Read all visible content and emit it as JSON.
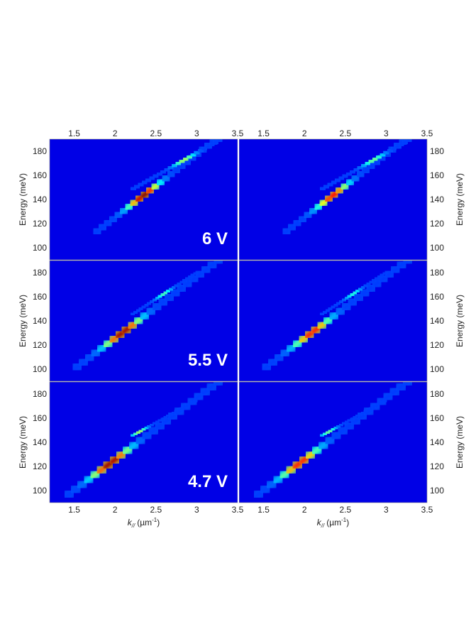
{
  "chart_data": {
    "type": "heatmap",
    "description_type": "energy-momentum dispersion maps, 3 rows x 2 columns (left: measured, right: simulated)",
    "x_label": {
      "main": "k",
      "sub": "//",
      "unit": "(µm",
      "sup": "-1",
      "close": ")"
    },
    "y_label": "Energy (meV)",
    "xlim": [
      1.2,
      3.5
    ],
    "ylim": [
      90,
      190
    ],
    "x_ticks": [
      1.5,
      2,
      2.5,
      3,
      3.5
    ],
    "y_ticks": [
      100,
      120,
      140,
      160,
      180
    ],
    "colormap": "jet",
    "rows": [
      {
        "voltage": "6 V",
        "branches": [
          {
            "k_start": 1.75,
            "E_start": 112,
            "k_end": 3.3,
            "E_end": 193,
            "peak_k": 2.35,
            "peak_E": 140,
            "peak": 1.0
          },
          {
            "k_start": 2.2,
            "E_start": 148,
            "k_end": 3.3,
            "E_end": 190,
            "peak_k": 2.85,
            "peak_E": 166,
            "peak": 0.55
          }
        ]
      },
      {
        "voltage": "5.5 V",
        "branches": [
          {
            "k_start": 1.5,
            "E_start": 100,
            "k_end": 3.3,
            "E_end": 192,
            "peak_k": 2.1,
            "peak_E": 128,
            "peak": 1.0
          },
          {
            "k_start": 2.2,
            "E_start": 145,
            "k_end": 3.0,
            "E_end": 180,
            "peak_k": 2.6,
            "peak_E": 160,
            "peak": 0.45
          }
        ]
      },
      {
        "voltage": "4.7 V",
        "branches": [
          {
            "k_start": 1.4,
            "E_start": 95,
            "k_end": 3.3,
            "E_end": 192,
            "peak_k": 1.95,
            "peak_E": 118,
            "peak": 1.0
          },
          {
            "k_start": 2.2,
            "E_start": 145,
            "k_end": 3.0,
            "E_end": 175,
            "peak_k": 2.3,
            "peak_E": 152,
            "peak": 0.55
          }
        ]
      }
    ]
  }
}
